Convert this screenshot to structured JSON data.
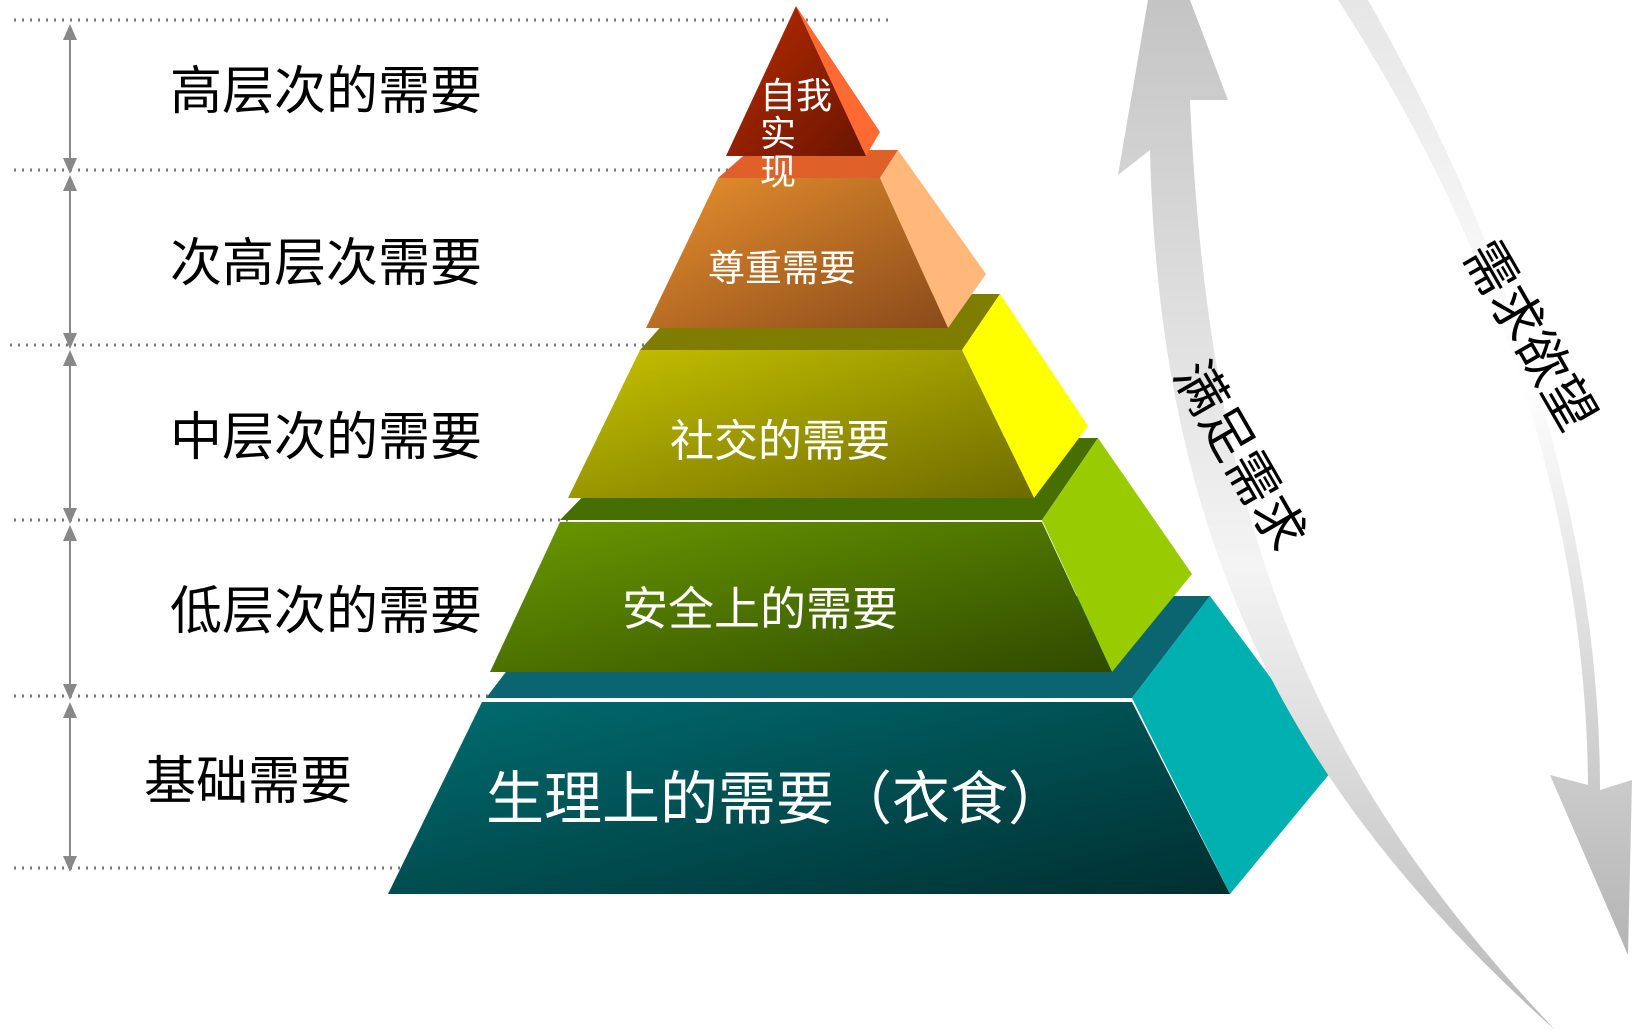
{
  "left_labels": [
    {
      "text": "高层次的需要"
    },
    {
      "text": "次高层次需要"
    },
    {
      "text": "中层次的需要"
    },
    {
      "text": "低层次的需要"
    },
    {
      "text": "基础需要"
    }
  ],
  "pyramid_tiers": [
    {
      "text": "自我实\n现",
      "front_color": "#8a1f00",
      "side_color": "#ff6a33"
    },
    {
      "text": "尊重需要",
      "front_color": "#c77a2a",
      "side_color": "#ffb87a"
    },
    {
      "text": "社交的需要",
      "front_color": "#9fa100",
      "side_color": "#ffff00"
    },
    {
      "text": "安全上的需要",
      "front_color": "#4f7f00",
      "side_color": "#99cc00"
    },
    {
      "text": "生理上的需要（衣食）",
      "front_color": "#00575a",
      "side_color": "#00b0b0"
    }
  ],
  "arrows": [
    {
      "text": "满足需求"
    },
    {
      "text": "需求欲望"
    }
  ],
  "colors": {
    "dotted_line": "#777777",
    "dimension_line": "#888888",
    "arrow_gray": "#c8c8c8"
  }
}
